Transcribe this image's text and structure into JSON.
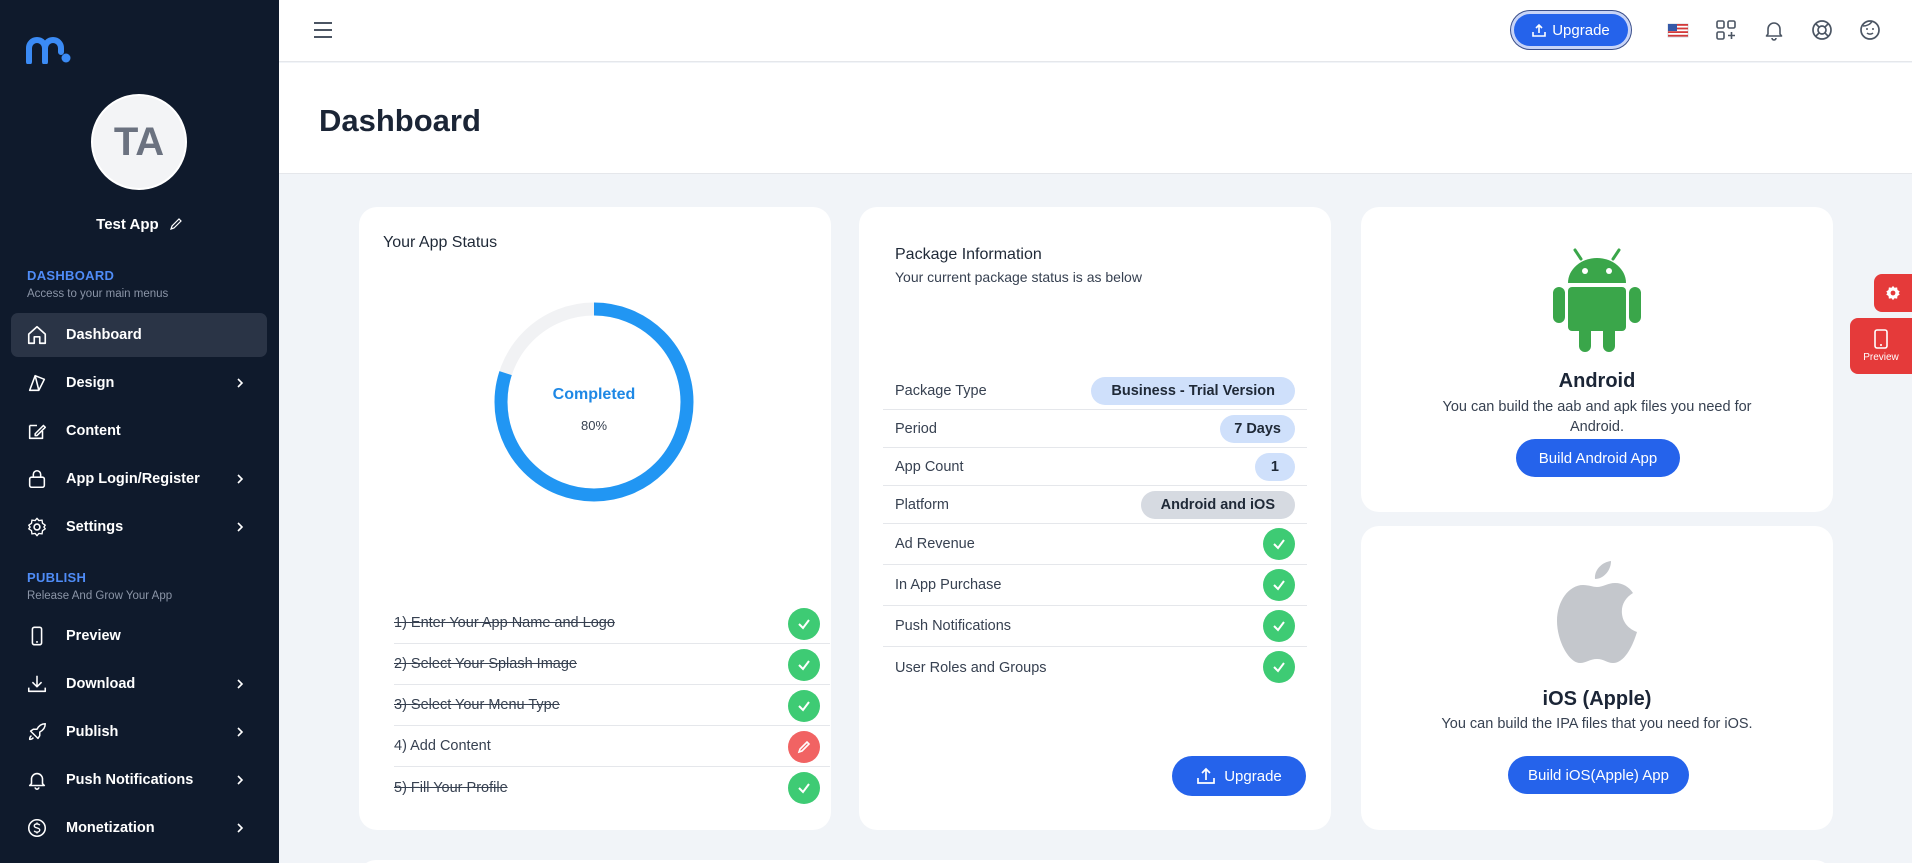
{
  "sidebar": {
    "avatar_initials": "TA",
    "app_name": "Test App",
    "sections": [
      {
        "title": "DASHBOARD",
        "subtitle": "Access to your main menus"
      },
      {
        "title": "PUBLISH",
        "subtitle": "Release And Grow Your App"
      }
    ],
    "items": [
      {
        "label": "Dashboard",
        "icon": "home-icon",
        "active": true
      },
      {
        "label": "Design",
        "icon": "design-icon",
        "chevron": true
      },
      {
        "label": "Content",
        "icon": "edit-icon"
      },
      {
        "label": "App Login/Register",
        "icon": "lock-icon",
        "chevron": true
      },
      {
        "label": "Settings",
        "icon": "gear-icon",
        "chevron": true
      },
      {
        "label": "Preview",
        "icon": "phone-icon"
      },
      {
        "label": "Download",
        "icon": "download-icon",
        "chevron": true
      },
      {
        "label": "Publish",
        "icon": "rocket-icon",
        "chevron": true
      },
      {
        "label": "Push Notifications",
        "icon": "bell-icon",
        "chevron": true
      },
      {
        "label": "Monetization",
        "icon": "dollar-icon",
        "chevron": true
      }
    ]
  },
  "topbar": {
    "upgrade_label": "Upgrade",
    "icons": [
      "us-flag-icon",
      "apps-icon",
      "bell-icon",
      "help-icon",
      "user-face-icon"
    ]
  },
  "header": {
    "title": "Dashboard"
  },
  "status_card": {
    "title": "Your App Status",
    "donut_label": "Completed",
    "donut_percent_label": "80%",
    "progress": 0.8,
    "tasks": [
      {
        "label": "1) Enter Your App Name and Logo",
        "done": true
      },
      {
        "label": "2) Select Your Splash Image",
        "done": true
      },
      {
        "label": "3) Select Your Menu Type",
        "done": true
      },
      {
        "label": "4) Add Content",
        "done": false
      },
      {
        "label": "5) Fill Your Profile",
        "done": true
      }
    ]
  },
  "package_card": {
    "title": "Package Information",
    "subtitle": "Your current package status is as below",
    "rows": [
      {
        "label": "Package Type",
        "value": "Business - Trial Version"
      },
      {
        "label": "Period",
        "value": "7 Days"
      },
      {
        "label": "App Count",
        "value": "1"
      },
      {
        "label": "Platform",
        "value": "Android and iOS"
      },
      {
        "label": "Ad Revenue"
      },
      {
        "label": "In App Purchase"
      },
      {
        "label": "Push Notifications"
      },
      {
        "label": "User Roles and Groups"
      }
    ],
    "upgrade_label": "Upgrade"
  },
  "android_card": {
    "title": "Android",
    "description": "You can build the aab and apk files you need for Android.",
    "button": "Build Android App"
  },
  "ios_card": {
    "title": "iOS (Apple)",
    "description": "You can build the IPA files that you need for iOS.",
    "button": "Build iOS(Apple) App"
  },
  "floating": {
    "preview_label": "Preview"
  },
  "colors": {
    "sidebar_bg": "#0f1a2c",
    "accent": "#2563eb",
    "success": "#3ecb74",
    "danger": "#f16363",
    "android": "#3aa64a",
    "apple": "#c4c7cc"
  }
}
